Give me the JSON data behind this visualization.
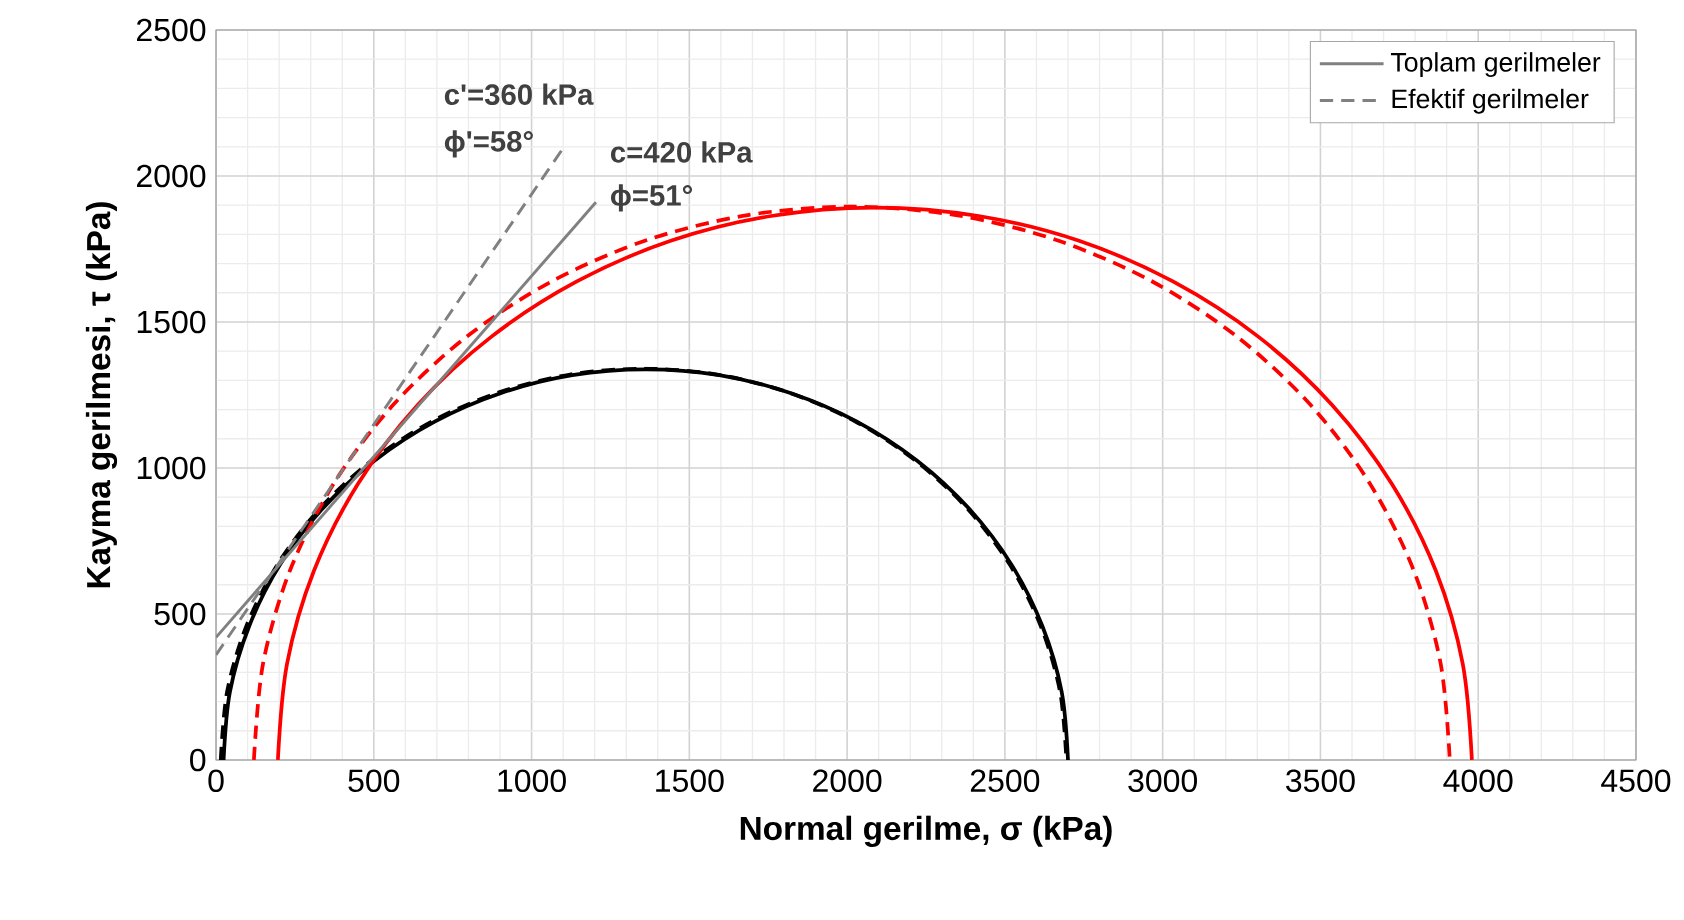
{
  "chart_data": {
    "type": "line",
    "xlabel": "Normal gerilme, σ (kPa)",
    "ylabel": "Kayma gerilmesi, τ (kPa)",
    "xlim": [
      0,
      4500
    ],
    "ylim": [
      0,
      2500
    ],
    "xticks": [
      0,
      500,
      1000,
      1500,
      2000,
      2500,
      3000,
      3500,
      4000,
      4500
    ],
    "yticks": [
      0,
      500,
      1000,
      1500,
      2000,
      2500
    ],
    "grid": true,
    "legend": "top right",
    "marker": "none",
    "annotations": [
      "c'=360 kPa",
      "ϕ'=58°",
      "c=420 kPa",
      "ϕ=51°"
    ],
    "series": [
      {
        "color": "#000000",
        "line_style": "solid",
        "x": [
          24,
          44,
          105,
          203,
          337,
          502,
          693,
          904,
          1129,
          1362,
          1595,
          1820,
          2031,
          2222,
          2387,
          2521,
          2619,
          2680,
          2700
        ],
        "values": [
          0,
          233,
          458,
          669,
          860,
          1025,
          1159,
          1257,
          1318,
          1338,
          1318,
          1257,
          1159,
          1025,
          860,
          669,
          458,
          233,
          0
        ]
      },
      {
        "color": "#000000",
        "line_style": "dashed",
        "x": [
          15,
          35,
          96,
          195,
          329,
          494,
          685,
          897,
          1122,
          1355,
          1588,
          1813,
          2025,
          2216,
          2381,
          2515,
          2614,
          2675,
          2695
        ],
        "values": [
          0,
          233,
          458,
          670,
          861,
          1026,
          1160,
          1259,
          1320,
          1340,
          1320,
          1259,
          1160,
          1026,
          861,
          670,
          458,
          233,
          0
        ]
      },
      {
        "color": "#ff0000",
        "line_style": "solid",
        "x": [
          196,
          225,
          310,
          450,
          639,
          872,
          1142,
          1441,
          1759,
          2088,
          2417,
          2735,
          3034,
          3304,
          3537,
          3726,
          3866,
          3951,
          3980
        ],
        "values": [
          0,
          329,
          647,
          946,
          1216,
          1449,
          1638,
          1778,
          1863,
          1892,
          1863,
          1778,
          1638,
          1449,
          1216,
          946,
          647,
          329,
          0
        ]
      },
      {
        "color": "#ff0000",
        "line_style": "dashed",
        "x": [
          120,
          149,
          234,
          374,
          563,
          797,
          1067,
          1367,
          1685,
          2015,
          2345,
          2663,
          2963,
          3233,
          3467,
          3656,
          3796,
          3881,
          3910
        ],
        "values": [
          0,
          330,
          648,
          948,
          1218,
          1452,
          1641,
          1781,
          1866,
          1895,
          1866,
          1781,
          1641,
          1452,
          1218,
          948,
          648,
          330,
          0
        ]
      },
      {
        "name": "Toplam gerilmeler",
        "color": "#808080",
        "line_style": "solid",
        "x": [
          0,
          1204
        ],
        "values": [
          420,
          1910
        ]
      },
      {
        "name": "Efektif gerilmeler",
        "color": "#808080",
        "line_style": "dashed",
        "x": [
          0,
          1103
        ],
        "values": [
          360,
          2100
        ]
      }
    ]
  }
}
